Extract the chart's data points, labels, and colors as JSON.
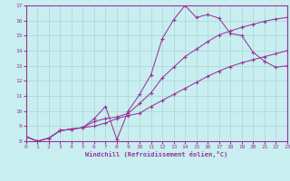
{
  "xlabel": "Windchill (Refroidissement éolien,°C)",
  "bg_color": "#c8eef0",
  "grid_color": "#b0d8dc",
  "line_color": "#993399",
  "spine_color": "#993399",
  "xmin": 0,
  "xmax": 23,
  "ymin": 8,
  "ymax": 17,
  "line1_x": [
    0,
    1,
    2,
    3,
    4,
    5,
    6,
    7,
    8,
    9,
    10,
    11,
    12,
    13,
    14,
    15,
    16,
    17,
    18,
    19,
    20,
    21,
    22,
    23
  ],
  "line1_y": [
    8.3,
    8.0,
    8.2,
    8.7,
    8.8,
    8.9,
    9.5,
    10.3,
    8.1,
    10.0,
    11.1,
    12.4,
    14.8,
    16.05,
    17.0,
    16.2,
    16.4,
    16.15,
    15.15,
    15.0,
    13.9,
    13.3,
    12.9,
    13.0
  ],
  "line2_x": [
    0,
    1,
    2,
    3,
    4,
    5,
    6,
    7,
    8,
    9,
    10,
    11,
    12,
    13,
    14,
    15,
    16,
    17,
    18,
    19,
    20,
    21,
    22,
    23
  ],
  "line2_y": [
    8.3,
    8.0,
    8.2,
    8.7,
    8.8,
    8.9,
    9.3,
    9.5,
    9.6,
    9.85,
    10.5,
    11.2,
    12.2,
    12.9,
    13.6,
    14.1,
    14.6,
    15.05,
    15.3,
    15.55,
    15.75,
    15.95,
    16.1,
    16.2
  ],
  "line3_x": [
    0,
    1,
    2,
    3,
    4,
    5,
    6,
    7,
    8,
    9,
    10,
    11,
    12,
    13,
    14,
    15,
    16,
    17,
    18,
    19,
    20,
    21,
    22,
    23
  ],
  "line3_y": [
    8.3,
    8.0,
    8.2,
    8.7,
    8.8,
    8.9,
    9.0,
    9.2,
    9.5,
    9.7,
    9.85,
    10.3,
    10.7,
    11.1,
    11.5,
    11.9,
    12.3,
    12.65,
    12.95,
    13.2,
    13.4,
    13.6,
    13.8,
    14.0
  ],
  "yticks": [
    8,
    9,
    10,
    11,
    12,
    13,
    14,
    15,
    16,
    17
  ],
  "xticks": [
    0,
    1,
    2,
    3,
    4,
    5,
    6,
    7,
    8,
    9,
    10,
    11,
    12,
    13,
    14,
    15,
    16,
    17,
    18,
    19,
    20,
    21,
    22,
    23
  ]
}
